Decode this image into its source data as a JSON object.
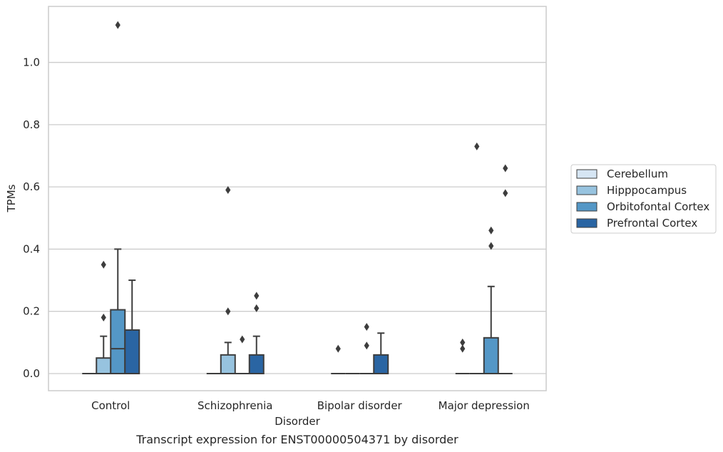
{
  "chart_data": {
    "type": "box",
    "title": "",
    "caption": "Transcript expression for ENST00000504371 by disorder",
    "xlabel": "Disorder",
    "ylabel": "TPMs",
    "ylim": [
      -0.055,
      1.18
    ],
    "yticks": [
      0.0,
      0.2,
      0.4,
      0.6,
      0.8,
      1.0
    ],
    "ytick_labels": [
      "0.0",
      "0.2",
      "0.4",
      "0.6",
      "0.8",
      "1.0"
    ],
    "grid": "horizontal",
    "legend_position": "right",
    "categories": [
      "Control",
      "Schizophrenia",
      "Bipolar disorder",
      "Major depression"
    ],
    "series": [
      {
        "name": "Cerebellum",
        "color": "#d6e6f4",
        "boxes": [
          {
            "q1": 0,
            "median": 0,
            "q3": 0,
            "whislo": 0,
            "whishi": 0,
            "fliers": []
          },
          {
            "q1": 0,
            "median": 0,
            "q3": 0,
            "whislo": 0,
            "whishi": 0,
            "fliers": []
          },
          {
            "q1": 0,
            "median": 0,
            "q3": 0,
            "whislo": 0,
            "whishi": 0,
            "fliers": [
              0.08
            ]
          },
          {
            "q1": 0,
            "median": 0,
            "q3": 0,
            "whislo": 0,
            "whishi": 0,
            "fliers": [
              0.08,
              0.1
            ]
          }
        ]
      },
      {
        "name": "Hipppocampus",
        "color": "#97c3df",
        "boxes": [
          {
            "q1": 0,
            "median": 0,
            "q3": 0.05,
            "whislo": 0,
            "whishi": 0.12,
            "fliers": [
              0.18,
              0.35
            ]
          },
          {
            "q1": 0,
            "median": 0,
            "q3": 0.06,
            "whislo": 0,
            "whishi": 0.1,
            "fliers": [
              0.2,
              0.59
            ]
          },
          {
            "q1": 0,
            "median": 0,
            "q3": 0,
            "whislo": 0,
            "whishi": 0,
            "fliers": []
          },
          {
            "q1": 0,
            "median": 0,
            "q3": 0,
            "whislo": 0,
            "whishi": 0,
            "fliers": [
              0.73
            ]
          }
        ]
      },
      {
        "name": "Orbitofontal Cortex",
        "color": "#5497c6",
        "boxes": [
          {
            "q1": 0,
            "median": 0.08,
            "q3": 0.205,
            "whislo": 0,
            "whishi": 0.4,
            "fliers": [
              1.12
            ]
          },
          {
            "q1": 0,
            "median": 0,
            "q3": 0,
            "whislo": 0,
            "whishi": 0,
            "fliers": [
              0.11
            ]
          },
          {
            "q1": 0,
            "median": 0,
            "q3": 0,
            "whislo": 0,
            "whishi": 0,
            "fliers": [
              0.09,
              0.15
            ]
          },
          {
            "q1": 0,
            "median": 0,
            "q3": 0.115,
            "whislo": 0,
            "whishi": 0.28,
            "fliers": [
              0.41,
              0.46
            ]
          }
        ]
      },
      {
        "name": "Prefrontal Cortex",
        "color": "#2a65a3",
        "boxes": [
          {
            "q1": 0,
            "median": 0,
            "q3": 0.14,
            "whislo": 0,
            "whishi": 0.3,
            "fliers": []
          },
          {
            "q1": 0,
            "median": 0,
            "q3": 0.06,
            "whislo": 0,
            "whishi": 0.12,
            "fliers": [
              0.21,
              0.25
            ]
          },
          {
            "q1": 0,
            "median": 0,
            "q3": 0.06,
            "whislo": 0,
            "whishi": 0.13,
            "fliers": []
          },
          {
            "q1": 0,
            "median": 0,
            "q3": 0,
            "whislo": 0,
            "whishi": 0,
            "fliers": [
              0.58,
              0.66
            ]
          }
        ]
      }
    ]
  }
}
